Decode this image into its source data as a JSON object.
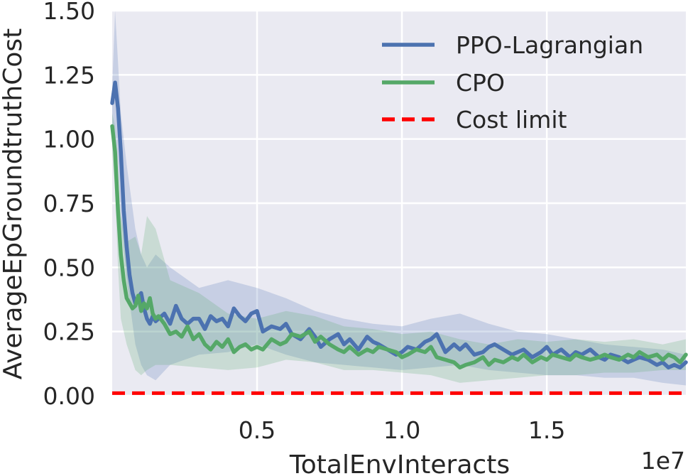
{
  "chart_data": {
    "type": "line",
    "title": "",
    "xlabel": "TotalEnvInteracts",
    "ylabel": "AverageEpGroundtruthCost",
    "x_offset_label": "1e7",
    "xlim": [
      0,
      1.98
    ],
    "ylim": [
      0,
      1.5
    ],
    "xticks": [
      0.5,
      1.0,
      1.5
    ],
    "xtick_labels": [
      "0.5",
      "1.0",
      "1.5"
    ],
    "yticks": [
      0,
      0.25,
      0.5,
      0.75,
      1.0,
      1.25,
      1.5
    ],
    "ytick_labels": [
      "0.00",
      "0.25",
      "0.50",
      "0.75",
      "1.00",
      "1.25",
      "1.50"
    ],
    "grid": true,
    "legend_position": "top-right",
    "series": [
      {
        "name": "PPO-Lagrangian",
        "color": "#4c72b0",
        "style": "solid",
        "x": [
          0,
          0.01,
          0.02,
          0.03,
          0.04,
          0.05,
          0.06,
          0.07,
          0.08,
          0.09,
          0.1,
          0.11,
          0.12,
          0.13,
          0.14,
          0.15,
          0.16,
          0.18,
          0.2,
          0.22,
          0.24,
          0.26,
          0.28,
          0.3,
          0.32,
          0.34,
          0.36,
          0.38,
          0.4,
          0.42,
          0.44,
          0.46,
          0.48,
          0.5,
          0.52,
          0.55,
          0.58,
          0.6,
          0.62,
          0.65,
          0.68,
          0.7,
          0.72,
          0.75,
          0.78,
          0.8,
          0.82,
          0.85,
          0.88,
          0.9,
          0.92,
          0.95,
          0.98,
          1.0,
          1.02,
          1.05,
          1.08,
          1.1,
          1.12,
          1.15,
          1.18,
          1.2,
          1.22,
          1.25,
          1.28,
          1.3,
          1.32,
          1.35,
          1.38,
          1.4,
          1.42,
          1.45,
          1.48,
          1.5,
          1.52,
          1.55,
          1.58,
          1.6,
          1.62,
          1.65,
          1.68,
          1.7,
          1.72,
          1.75,
          1.78,
          1.8,
          1.82,
          1.85,
          1.88,
          1.9,
          1.92,
          1.94,
          1.96,
          1.98
        ],
        "values": [
          1.14,
          1.22,
          1.12,
          0.95,
          0.72,
          0.58,
          0.47,
          0.4,
          0.36,
          0.38,
          0.4,
          0.34,
          0.3,
          0.28,
          0.31,
          0.29,
          0.3,
          0.32,
          0.28,
          0.35,
          0.3,
          0.28,
          0.3,
          0.3,
          0.26,
          0.31,
          0.29,
          0.3,
          0.27,
          0.34,
          0.31,
          0.29,
          0.32,
          0.33,
          0.25,
          0.27,
          0.26,
          0.28,
          0.24,
          0.22,
          0.26,
          0.23,
          0.19,
          0.22,
          0.24,
          0.2,
          0.22,
          0.18,
          0.23,
          0.21,
          0.2,
          0.18,
          0.16,
          0.17,
          0.19,
          0.18,
          0.21,
          0.22,
          0.24,
          0.17,
          0.2,
          0.18,
          0.2,
          0.16,
          0.17,
          0.19,
          0.2,
          0.18,
          0.16,
          0.17,
          0.18,
          0.15,
          0.17,
          0.19,
          0.16,
          0.18,
          0.15,
          0.17,
          0.16,
          0.18,
          0.15,
          0.14,
          0.16,
          0.15,
          0.13,
          0.14,
          0.15,
          0.14,
          0.12,
          0.13,
          0.11,
          0.12,
          0.11,
          0.13
        ]
      },
      {
        "name": "CPO",
        "color": "#55a868",
        "style": "solid",
        "x": [
          0,
          0.01,
          0.02,
          0.03,
          0.04,
          0.05,
          0.06,
          0.07,
          0.08,
          0.09,
          0.1,
          0.11,
          0.12,
          0.13,
          0.14,
          0.15,
          0.16,
          0.18,
          0.2,
          0.22,
          0.24,
          0.26,
          0.28,
          0.3,
          0.32,
          0.34,
          0.36,
          0.38,
          0.4,
          0.42,
          0.44,
          0.46,
          0.48,
          0.5,
          0.52,
          0.55,
          0.58,
          0.6,
          0.62,
          0.65,
          0.68,
          0.7,
          0.72,
          0.75,
          0.78,
          0.8,
          0.82,
          0.85,
          0.88,
          0.9,
          0.92,
          0.95,
          0.98,
          1.0,
          1.02,
          1.05,
          1.08,
          1.1,
          1.12,
          1.15,
          1.18,
          1.2,
          1.22,
          1.25,
          1.28,
          1.3,
          1.32,
          1.35,
          1.38,
          1.4,
          1.42,
          1.45,
          1.48,
          1.5,
          1.52,
          1.55,
          1.58,
          1.6,
          1.62,
          1.65,
          1.68,
          1.7,
          1.72,
          1.75,
          1.78,
          1.8,
          1.82,
          1.85,
          1.88,
          1.9,
          1.92,
          1.94,
          1.96,
          1.98
        ],
        "values": [
          1.05,
          0.95,
          0.72,
          0.55,
          0.45,
          0.38,
          0.36,
          0.34,
          0.35,
          0.39,
          0.33,
          0.36,
          0.34,
          0.38,
          0.32,
          0.3,
          0.31,
          0.28,
          0.24,
          0.25,
          0.23,
          0.27,
          0.22,
          0.24,
          0.2,
          0.18,
          0.21,
          0.19,
          0.22,
          0.17,
          0.19,
          0.2,
          0.18,
          0.19,
          0.18,
          0.22,
          0.2,
          0.21,
          0.24,
          0.23,
          0.25,
          0.21,
          0.23,
          0.2,
          0.18,
          0.17,
          0.19,
          0.16,
          0.18,
          0.17,
          0.19,
          0.18,
          0.17,
          0.15,
          0.16,
          0.18,
          0.17,
          0.19,
          0.15,
          0.14,
          0.13,
          0.11,
          0.12,
          0.13,
          0.15,
          0.12,
          0.14,
          0.13,
          0.15,
          0.14,
          0.16,
          0.13,
          0.15,
          0.14,
          0.16,
          0.15,
          0.14,
          0.16,
          0.15,
          0.14,
          0.15,
          0.16,
          0.15,
          0.14,
          0.16,
          0.15,
          0.17,
          0.15,
          0.16,
          0.14,
          0.16,
          0.15,
          0.13,
          0.16
        ]
      },
      {
        "name": "Cost limit",
        "color": "#ff0000",
        "style": "dashed",
        "x": [
          0,
          1.98
        ],
        "values": [
          0.01,
          0.01
        ]
      }
    ],
    "bands": [
      {
        "series": "PPO-Lagrangian",
        "color": "#4c72b0",
        "x": [
          0,
          0.01,
          0.02,
          0.03,
          0.05,
          0.08,
          0.1,
          0.12,
          0.15,
          0.2,
          0.3,
          0.4,
          0.5,
          0.6,
          0.7,
          0.8,
          0.9,
          1.0,
          1.1,
          1.2,
          1.3,
          1.4,
          1.5,
          1.6,
          1.7,
          1.8,
          1.9,
          1.98
        ],
        "upper": [
          1.2,
          1.5,
          1.3,
          1.1,
          0.9,
          0.65,
          0.55,
          0.5,
          0.55,
          0.5,
          0.42,
          0.45,
          0.42,
          0.38,
          0.33,
          0.3,
          0.28,
          0.27,
          0.3,
          0.32,
          0.28,
          0.25,
          0.24,
          0.22,
          0.2,
          0.19,
          0.18,
          0.16
        ],
        "lower": [
          1.05,
          1.0,
          0.9,
          0.7,
          0.45,
          0.2,
          0.12,
          0.08,
          0.06,
          0.12,
          0.16,
          0.17,
          0.2,
          0.16,
          0.13,
          0.12,
          0.11,
          0.1,
          0.11,
          0.12,
          0.1,
          0.09,
          0.08,
          0.08,
          0.07,
          0.07,
          0.05,
          0.04
        ]
      },
      {
        "series": "CPO",
        "color": "#55a868",
        "x": [
          0,
          0.01,
          0.02,
          0.03,
          0.05,
          0.08,
          0.1,
          0.12,
          0.15,
          0.2,
          0.3,
          0.4,
          0.5,
          0.6,
          0.7,
          0.8,
          0.9,
          1.0,
          1.1,
          1.2,
          1.3,
          1.4,
          1.5,
          1.6,
          1.7,
          1.8,
          1.9,
          1.98
        ],
        "upper": [
          1.1,
          1.05,
          0.85,
          0.7,
          0.6,
          0.62,
          0.55,
          0.7,
          0.65,
          0.45,
          0.4,
          0.32,
          0.3,
          0.33,
          0.31,
          0.27,
          0.26,
          0.24,
          0.25,
          0.22,
          0.2,
          0.22,
          0.21,
          0.22,
          0.21,
          0.22,
          0.2,
          0.22
        ],
        "lower": [
          0.95,
          0.8,
          0.5,
          0.3,
          0.2,
          0.1,
          0.08,
          0.1,
          0.12,
          0.12,
          0.11,
          0.1,
          0.11,
          0.14,
          0.13,
          0.1,
          0.1,
          0.09,
          0.08,
          0.05,
          0.06,
          0.07,
          0.08,
          0.08,
          0.09,
          0.09,
          0.1,
          0.1
        ]
      }
    ]
  }
}
